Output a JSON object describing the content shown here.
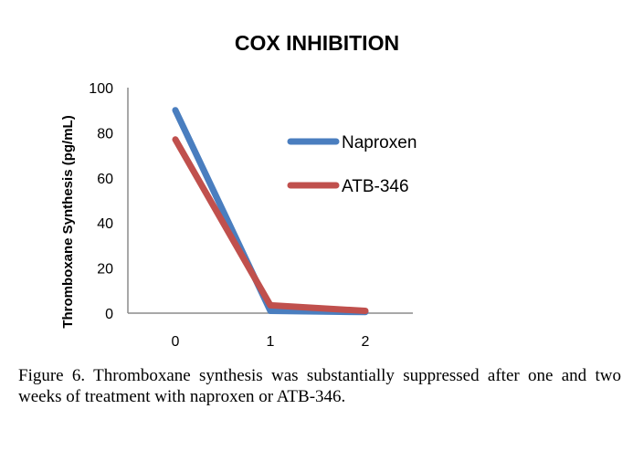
{
  "chart_data": {
    "type": "line",
    "title": "COX INHIBITION",
    "xlabel": "",
    "ylabel": "Thromboxane Synthesis (pg/mL)",
    "categories": [
      "0",
      "1",
      "2"
    ],
    "x": [
      0,
      1,
      2
    ],
    "ylim": [
      0,
      100
    ],
    "xlim": [
      -0.5,
      2.5
    ],
    "yticks": [
      "0",
      "20",
      "40",
      "60",
      "80",
      "100"
    ],
    "grid": false,
    "legend_position": "right",
    "series": [
      {
        "name": "Naproxen",
        "values": [
          90,
          1,
          0.5
        ],
        "color": "#4a7ebf"
      },
      {
        "name": "ATB-346",
        "values": [
          77,
          3.5,
          1
        ],
        "color": "#c0504d"
      }
    ]
  },
  "caption": "Figure 6. Thromboxane synthesis was substantially suppressed after one and two weeks of treatment with naproxen or ATB-346."
}
